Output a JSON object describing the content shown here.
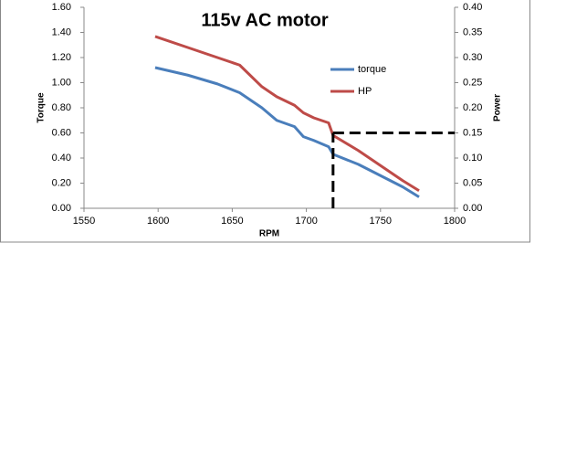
{
  "chart_data": {
    "type": "line",
    "title": "115v AC motor",
    "x_label": "RPM",
    "y_label": "Torque",
    "y2_label": "Power",
    "x": [
      1598,
      1620,
      1640,
      1655,
      1670,
      1680,
      1692,
      1698,
      1705,
      1715,
      1718,
      1735,
      1750,
      1765,
      1776
    ],
    "series": [
      {
        "name": "torque",
        "color": "#4a7ebb",
        "values": [
          1.12,
          1.06,
          0.99,
          0.92,
          0.8,
          0.7,
          0.65,
          0.57,
          0.54,
          0.49,
          0.43,
          0.35,
          0.26,
          0.17,
          0.09
        ]
      },
      {
        "name": "HP",
        "color": "#be4b48",
        "axis": "y2",
        "values": [
          0.342,
          0.32,
          0.3,
          0.285,
          0.242,
          0.222,
          0.205,
          0.19,
          0.18,
          0.17,
          0.145,
          0.115,
          0.085,
          0.055,
          0.035
        ]
      }
    ],
    "marker": {
      "x": 1718,
      "y2": 0.15
    },
    "xlim": [
      1550,
      1800
    ],
    "xticks": [
      1550,
      1600,
      1650,
      1700,
      1750,
      1800
    ],
    "ylim": [
      0,
      1.6
    ],
    "yticks": [
      {
        "value": 0,
        "label": "0.00"
      },
      {
        "value": 0.2,
        "label": "0.20"
      },
      {
        "value": 0.4,
        "label": "0.40"
      },
      {
        "value": 0.6,
        "label": "0.60"
      },
      {
        "value": 0.8,
        "label": "0.80"
      },
      {
        "value": 1,
        "label": "1.00"
      },
      {
        "value": 1.2,
        "label": "1.20"
      },
      {
        "value": 1.4,
        "label": "1.40"
      },
      {
        "value": 1.6,
        "label": "1.60"
      }
    ],
    "y2lim": [
      0,
      0.4
    ],
    "y2ticks": [
      {
        "value": 0,
        "label": "0.00"
      },
      {
        "value": 0.05,
        "label": "0.05"
      },
      {
        "value": 0.1,
        "label": "0.10"
      },
      {
        "value": 0.15,
        "label": "0.15"
      },
      {
        "value": 0.2,
        "label": "0.20"
      },
      {
        "value": 0.25,
        "label": "0.25"
      },
      {
        "value": 0.3,
        "label": "0.30"
      },
      {
        "value": 0.35,
        "label": "0.35"
      },
      {
        "value": 0.4,
        "label": "0.40"
      }
    ],
    "grid": false
  }
}
